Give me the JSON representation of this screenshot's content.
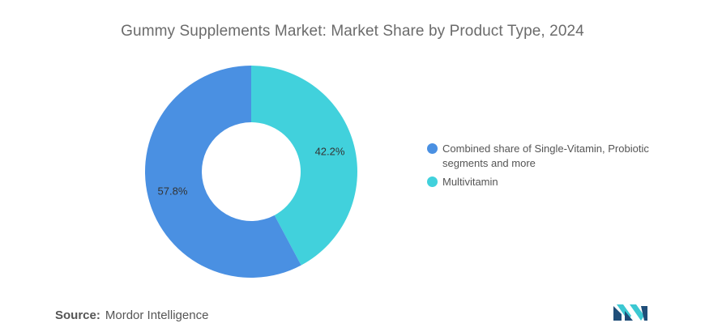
{
  "chart_data": {
    "type": "pie",
    "variant": "donut",
    "title": "Gummy Supplements Market: Market Share by Product Type, 2024",
    "slices": [
      {
        "label": "Multivitamin",
        "value": 42.2,
        "display": "42.2%",
        "color": "#41d1dc"
      },
      {
        "label": "Combined share of Single-Vitamin, Probiotic segments and more",
        "value": 57.8,
        "display": "57.8%",
        "color": "#4a90e2"
      }
    ],
    "legend": {
      "placement": "right",
      "items": [
        {
          "label": "Combined share of Single-Vitamin, Probiotic segments and more",
          "color": "#4a90e2"
        },
        {
          "label": "Multivitamin",
          "color": "#41d1dc"
        }
      ]
    }
  },
  "source": {
    "label": "Source:",
    "text": "Mordor Intelligence"
  },
  "logo": {
    "icon": "mordor-intelligence-logo",
    "colors": [
      "#1f4e79",
      "#3cc8d2"
    ]
  }
}
